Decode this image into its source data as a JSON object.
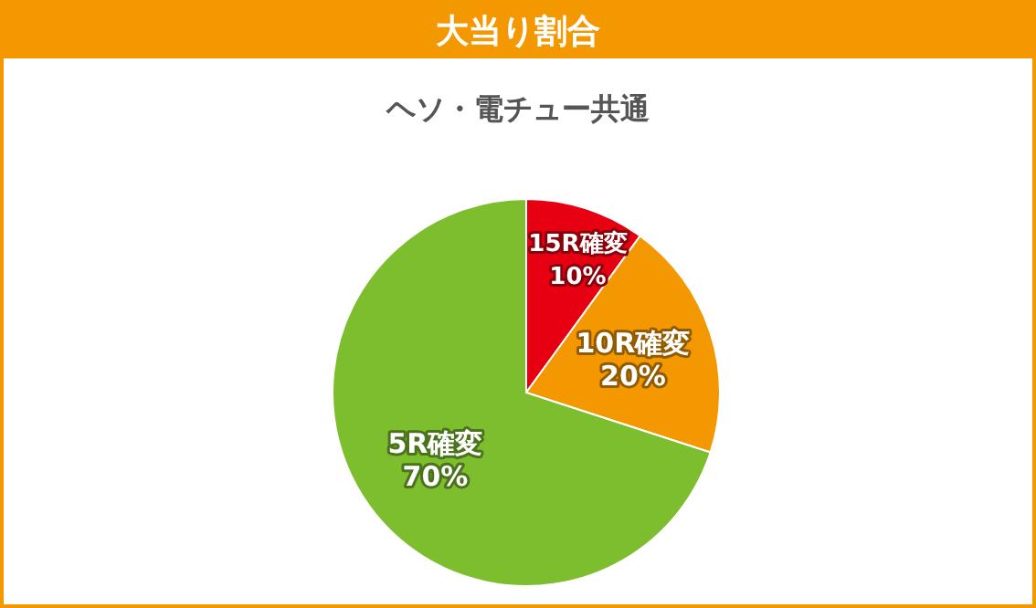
{
  "chart_data": {
    "type": "pie",
    "title": "大当り割合",
    "subtitle": "ヘソ・電チュー共通",
    "categories": [
      "15R確変",
      "10R確変",
      "5R確変"
    ],
    "values": [
      10,
      20,
      70
    ],
    "value_labels": [
      "10%",
      "20%",
      "70%"
    ],
    "colors": [
      "#e60012",
      "#f39800",
      "#7dbe2f"
    ],
    "legend": false
  }
}
